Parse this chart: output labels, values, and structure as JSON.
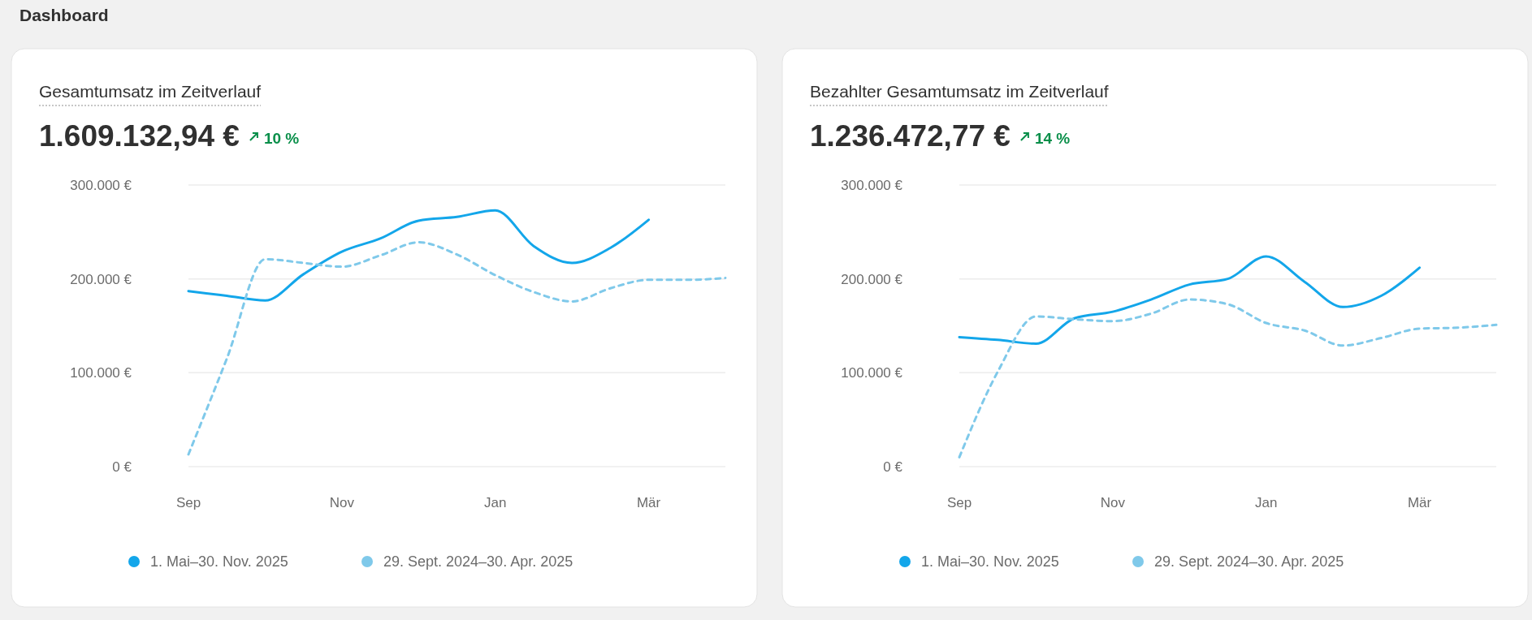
{
  "chart_data": [
    {
      "type": "line",
      "title": "Gesamtumsatz im Zeitverlauf",
      "subtitle": "1.609.132,94 €",
      "annotations": [
        "Dashboard",
        "10 %"
      ],
      "categories": [
        "Sep",
        null,
        null,
        null,
        "Nov",
        null,
        null,
        null,
        "Jan",
        null,
        null,
        null,
        "Mär",
        null,
        null
      ],
      "series": [
        {
          "name": "1. Mai–30. Nov. 2025",
          "color": "#13a6ea",
          "line_style": "solid",
          "values": [
            187000,
            182000,
            177000,
            205000,
            229000,
            243000,
            262000,
            266000,
            273000,
            235000,
            217000,
            233000,
            263000,
            null,
            null
          ]
        },
        {
          "name": "29. Sept. 2024–30. Apr. 2025",
          "color": "#7fc9ea",
          "line_style": "dashed",
          "values": [
            13000,
            115000,
            221000,
            217000,
            213000,
            225000,
            239000,
            226000,
            204000,
            186000,
            176000,
            190000,
            199000,
            199000,
            201000
          ]
        }
      ],
      "ylim": [
        0,
        300000
      ],
      "yticks": [
        {
          "value": 0,
          "label": "0 €"
        },
        {
          "value": 100000,
          "label": "100.000 €"
        },
        {
          "value": 200000,
          "label": "200.000 €"
        },
        {
          "value": 300000,
          "label": "300.000 €"
        }
      ],
      "grid": "y",
      "legend": "bottom"
    },
    {
      "type": "line",
      "title": "Bezahlter Gesamtumsatz im Zeitverlauf",
      "subtitle": "1.236.472,77 €",
      "annotations": [
        "14 %"
      ],
      "categories": [
        "Sep",
        null,
        null,
        null,
        "Nov",
        null,
        null,
        null,
        "Jan",
        null,
        null,
        null,
        "Mär",
        null,
        null
      ],
      "series": [
        {
          "name": "1. Mai–30. Nov. 2025",
          "color": "#13a6ea",
          "line_style": "solid",
          "values": [
            138000,
            135000,
            131000,
            158000,
            165000,
            178000,
            194000,
            200000,
            224000,
            197000,
            170000,
            182000,
            212000,
            null,
            null
          ]
        },
        {
          "name": "29. Sept. 2024–30. Apr. 2025",
          "color": "#7fc9ea",
          "line_style": "dashed",
          "values": [
            10000,
            101000,
            160000,
            157000,
            155000,
            163000,
            178000,
            173000,
            153000,
            145000,
            129000,
            137000,
            147000,
            148000,
            151000
          ]
        }
      ],
      "ylim": [
        0,
        300000
      ],
      "yticks": [
        {
          "value": 0,
          "label": "0 €"
        },
        {
          "value": 100000,
          "label": "100.000 €"
        },
        {
          "value": 200000,
          "label": "200.000 €"
        },
        {
          "value": 300000,
          "label": "300.000 €"
        }
      ],
      "grid": "y",
      "legend": "bottom"
    }
  ]
}
